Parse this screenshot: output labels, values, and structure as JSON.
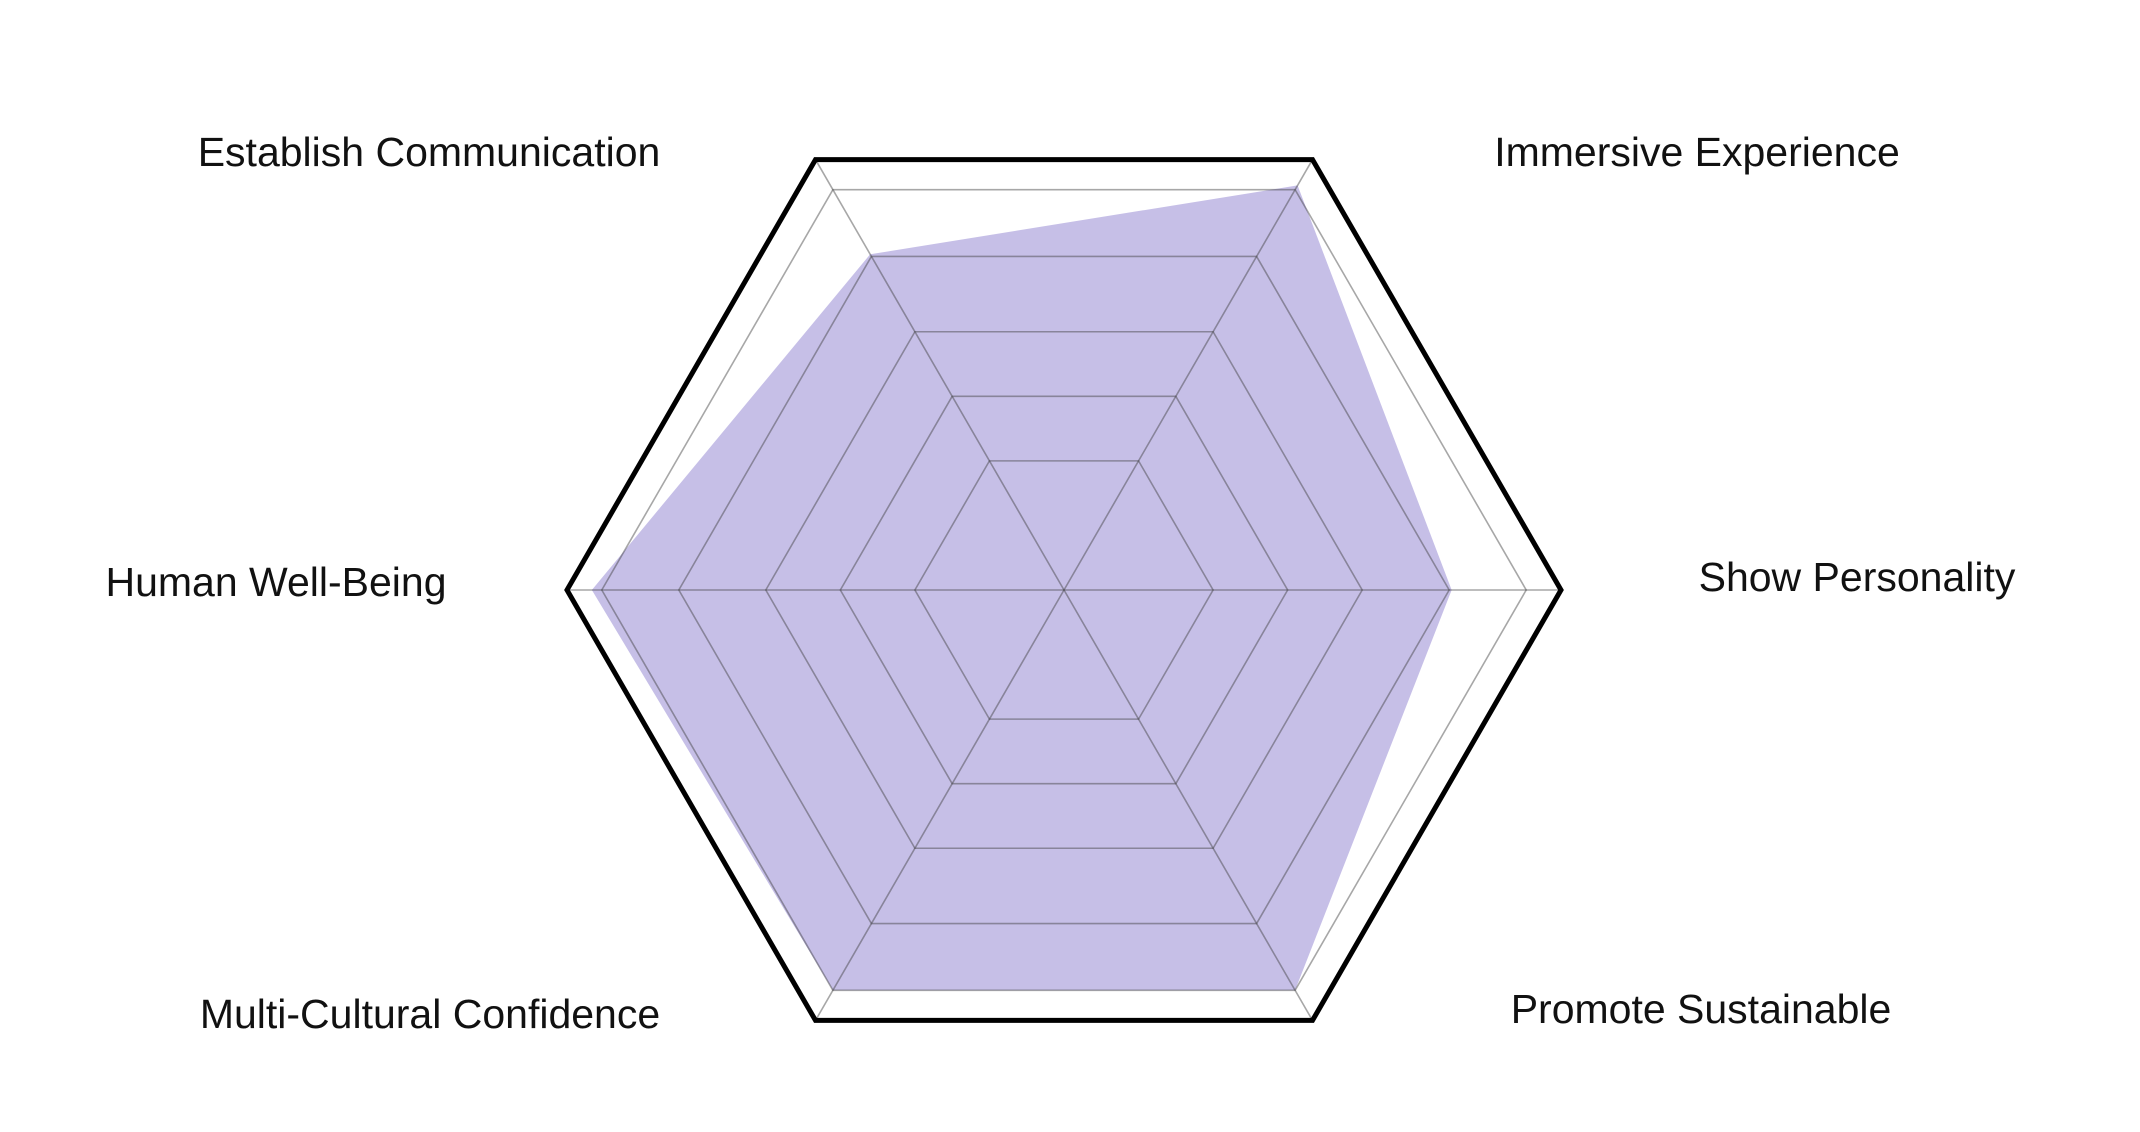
{
  "chart_data": {
    "type": "radar",
    "categories": [
      "Establish Communication",
      "Immersive Experience",
      "Show Personality",
      "Promote Sustainable",
      "Multi-Cultural Confidence",
      "Human Well-Being"
    ],
    "values": [
      78,
      94,
      78,
      93,
      93,
      95
    ],
    "color": "#c6bfe7",
    "ylim": [
      0,
      100
    ]
  }
}
